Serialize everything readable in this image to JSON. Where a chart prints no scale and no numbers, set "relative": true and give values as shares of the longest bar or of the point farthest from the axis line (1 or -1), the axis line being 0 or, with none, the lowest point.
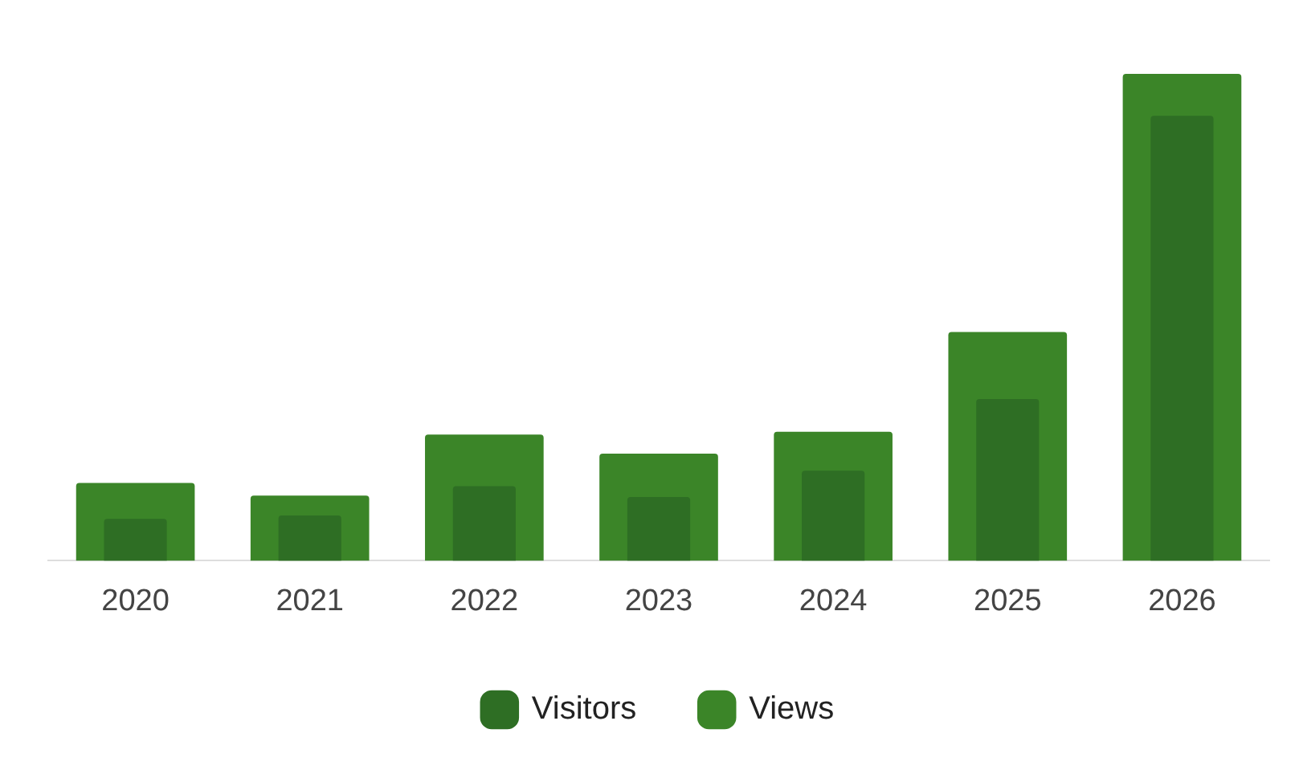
{
  "chart_data": {
    "type": "bar",
    "relative": true,
    "categories": [
      "2020",
      "2021",
      "2022",
      "2023",
      "2024",
      "2025",
      "2026"
    ],
    "series": [
      {
        "name": "Views",
        "color": "#3b8528",
        "values": [
          0.16,
          0.134,
          0.259,
          0.22,
          0.265,
          0.47,
          1
        ]
      },
      {
        "name": "Visitors",
        "color": "#2e6e24",
        "values": [
          0.086,
          0.093,
          0.153,
          0.131,
          0.185,
          0.332,
          0.914
        ]
      }
    ],
    "legend": "bottom"
  }
}
